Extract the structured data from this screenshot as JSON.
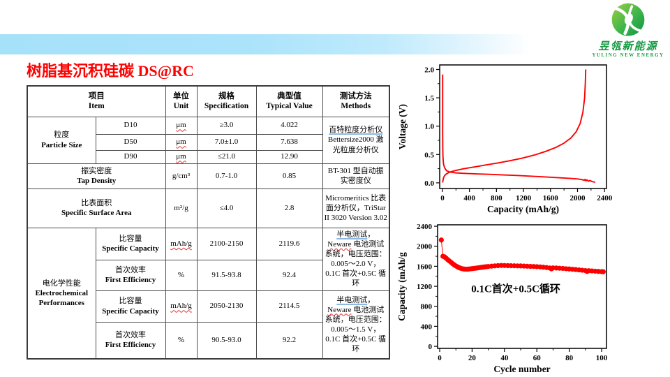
{
  "slide": {
    "title": "树脂基沉积硅碳 DS@RC",
    "title_color": "#ff0000",
    "banner_color": "#a6e1fa"
  },
  "logo": {
    "company_cn": "昱瓴新能源",
    "company_en": "YULING NEW ENERGY",
    "green_dark": "#0f9347",
    "green_light": "#8cc63f"
  },
  "table": {
    "header": {
      "item_cn": "项目",
      "item_en": "Item",
      "unit_cn": "单位",
      "unit_en": "Unit",
      "spec_cn": "规格",
      "spec_en": "Specification",
      "typical_cn": "典型值",
      "typical_en": "Typical Value",
      "methods_cn": "测试方法",
      "methods_en": "Methods"
    },
    "particle": {
      "label_cn": "粒度",
      "label_en": "Particle Size",
      "rows": [
        {
          "name": "D10",
          "unit": "μm",
          "spec": "≥3.0",
          "typical": "4.022"
        },
        {
          "name": "D50",
          "unit": "μm",
          "spec": "7.0±1.0",
          "typical": "7.638"
        },
        {
          "name": "D90",
          "unit": "μm",
          "spec": "≤21.0",
          "typical": "12.90"
        }
      ],
      "method_link": "百特粒度分析仪",
      "method_rest": "Bettersize2000 激光粒度分析仪"
    },
    "tap_density": {
      "label_cn": "振实密度",
      "label_en": "Tap Density",
      "unit": "g/cm³",
      "spec": "0.7-1.0",
      "typical": "0.85",
      "method": "BT-301 型自动振实密度仪"
    },
    "surface_area": {
      "label_cn": "比表面积",
      "label_en": "Specific Surface Area",
      "unit": "m²/g",
      "spec": "≤4.0",
      "typical": "2.8",
      "method": "Micromeritics 比表面分析仪，TriStar II 3020 Version 3.02"
    },
    "electrochem": {
      "label_cn": "电化学性能",
      "label_en1": "Electrochemical",
      "label_en2": "Performances",
      "rows": [
        {
          "label_cn": "比容量",
          "label_en": "Specific Capacity",
          "unit": "mAh/g",
          "spec": "2100-2150",
          "typical": "2119.6"
        },
        {
          "label_cn": "首次效率",
          "label_en": "First Efficiency",
          "unit": "%",
          "spec": "91.5-93.8",
          "typical": "92.4"
        },
        {
          "label_cn": "比容量",
          "label_en": "Specific Capacity",
          "unit": "mAh/g",
          "spec": "2050-2130",
          "typical": "2114.5"
        },
        {
          "label_cn": "首次效率",
          "label_en": "First Efficiency",
          "unit": "%",
          "spec": "90.5-93.0",
          "typical": "92.2"
        }
      ],
      "method1_link": "半电测试",
      "method1_sep": "，",
      "method1_brand": "Neware",
      "method1_rest": " 电池测试系统，电压范围：0.005～2.0 V，0.1C 首次+0.5C 循环",
      "method2_link": "半电测试",
      "method2_sep": "，",
      "method2_brand": "Neware",
      "method2_rest": " 电池测试系统，电压范围：0.005～1.5 V，0.1C 首次+0.5C 循环"
    }
  },
  "chart_data": [
    {
      "type": "line",
      "title": "",
      "xlabel": "Capacity (mAh/g)",
      "ylabel": "Voltage (V)",
      "xlim": [
        0,
        2400
      ],
      "ylim": [
        0,
        2.0
      ],
      "xticks": [
        0,
        400,
        800,
        1200,
        1600,
        2000,
        2400
      ],
      "yticks": [
        0,
        0.5,
        1.0,
        1.5,
        2.0
      ],
      "yticklabels": [
        "0.0",
        "0.5",
        "1.0",
        "1.5",
        "2.0"
      ],
      "xminor": 200,
      "yminor": 0.25,
      "grid": false,
      "line_color": "#ff0000",
      "series": [
        {
          "name": "first lithiation (discharge)",
          "x": [
            3,
            3,
            5,
            8,
            15,
            30,
            60,
            110,
            200,
            350,
            500,
            700,
            900,
            1100,
            1300,
            1500,
            1700,
            1900,
            2000,
            2060,
            2100,
            2112,
            2125,
            2140,
            2160,
            2185,
            2215,
            2245,
            2262
          ],
          "y": [
            1.91,
            0.9,
            0.6,
            0.45,
            0.34,
            0.27,
            0.215,
            0.19,
            0.175,
            0.165,
            0.158,
            0.15,
            0.14,
            0.13,
            0.118,
            0.105,
            0.092,
            0.078,
            0.068,
            0.058,
            0.045,
            0.062,
            0.035,
            0.052,
            0.03,
            0.042,
            0.022,
            0.015,
            0.012
          ]
        },
        {
          "name": "first delithiation (charge)",
          "x": [
            2,
            6,
            14,
            30,
            60,
            110,
            200,
            320,
            470,
            640,
            820,
            1000,
            1180,
            1360,
            1530,
            1680,
            1800,
            1900,
            1980,
            2040,
            2080,
            2105,
            2115,
            2120,
            2121
          ],
          "y": [
            0.005,
            0.03,
            0.08,
            0.125,
            0.16,
            0.19,
            0.22,
            0.25,
            0.28,
            0.315,
            0.35,
            0.39,
            0.435,
            0.49,
            0.555,
            0.625,
            0.7,
            0.79,
            0.9,
            1.05,
            1.25,
            1.5,
            1.75,
            1.93,
            2.0
          ]
        }
      ]
    },
    {
      "type": "scatter",
      "title": "",
      "xlabel": "Cycle number",
      "ylabel": "Capacity (mAh/g",
      "annotation": "0.1C首次+0.5C循环",
      "annotation_xy": [
        47,
        1080
      ],
      "xlim": [
        0,
        100
      ],
      "ylim": [
        0,
        2400
      ],
      "xticks": [
        0,
        20,
        40,
        60,
        80,
        100
      ],
      "yticks": [
        0,
        400,
        800,
        1200,
        1600,
        2000,
        2400
      ],
      "xminor": 10,
      "yminor": 200,
      "grid": false,
      "marker_color": "#ff0000",
      "x": [
        1,
        2,
        3,
        4,
        5,
        6,
        7,
        8,
        9,
        10,
        11,
        12,
        13,
        14,
        15,
        16,
        17,
        18,
        19,
        20,
        21,
        22,
        23,
        24,
        25,
        26,
        27,
        28,
        29,
        30,
        32,
        34,
        36,
        38,
        40,
        42,
        44,
        46,
        48,
        50,
        52,
        54,
        56,
        58,
        60,
        62,
        64,
        66,
        68,
        69,
        70,
        72,
        74,
        76,
        78,
        80,
        82,
        84,
        86,
        88,
        90,
        91,
        92,
        94,
        96,
        98,
        100,
        101
      ],
      "y": [
        2125,
        1800,
        1788,
        1760,
        1732,
        1705,
        1678,
        1652,
        1628,
        1606,
        1588,
        1572,
        1560,
        1551,
        1545,
        1542,
        1542,
        1545,
        1549,
        1553,
        1557,
        1561,
        1565,
        1570,
        1575,
        1579,
        1583,
        1588,
        1592,
        1596,
        1602,
        1608,
        1613,
        1616,
        1615,
        1613,
        1611,
        1610,
        1608,
        1607,
        1604,
        1601,
        1598,
        1595,
        1592,
        1587,
        1581,
        1574,
        1565,
        1548,
        1568,
        1565,
        1561,
        1557,
        1551,
        1546,
        1540,
        1534,
        1528,
        1521,
        1514,
        1496,
        1511,
        1507,
        1502,
        1497,
        1492,
        1490
      ]
    }
  ]
}
